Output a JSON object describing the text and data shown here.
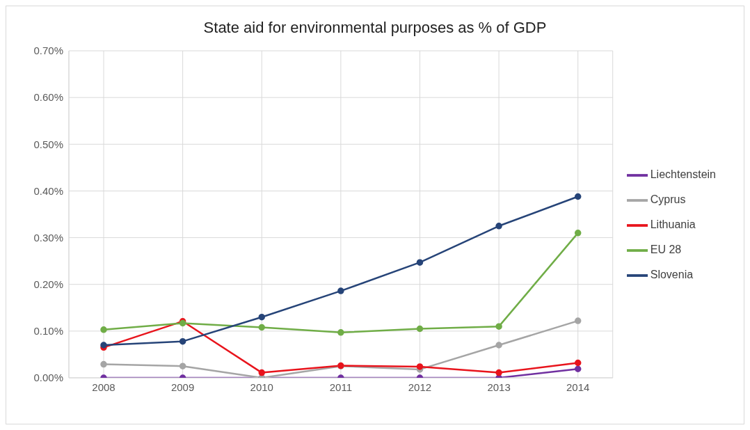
{
  "chart_data": {
    "type": "line",
    "title": "State aid for environmental purposes as % of GDP",
    "categories": [
      "2008",
      "2009",
      "2010",
      "2011",
      "2012",
      "2013",
      "2014"
    ],
    "series": [
      {
        "name": "Liechtenstein",
        "color": "#7030a0",
        "values": [
          0,
          0,
          0,
          0,
          0,
          0,
          0.019
        ]
      },
      {
        "name": "Cyprus",
        "color": "#a5a5a5",
        "values": [
          0.029,
          0.025,
          0,
          0.025,
          0.018,
          0.07,
          0.122
        ]
      },
      {
        "name": "Lithuania",
        "color": "#e8141c",
        "values": [
          0.065,
          0.121,
          0.011,
          0.026,
          0.024,
          0.011,
          0.032
        ]
      },
      {
        "name": "EU 28",
        "color": "#70ad47",
        "values": [
          0.103,
          0.117,
          0.108,
          0.097,
          0.105,
          0.11,
          0.31
        ]
      },
      {
        "name": "Slovenia",
        "color": "#264478",
        "values": [
          0.07,
          0.078,
          0.13,
          0.186,
          0.247,
          0.325,
          0.388
        ]
      }
    ],
    "ylim": [
      0,
      0.7
    ],
    "yticks": [
      {
        "value": 0,
        "label": "0.00%"
      },
      {
        "value": 0.1,
        "label": "0.10%"
      },
      {
        "value": 0.2,
        "label": "0.20%"
      },
      {
        "value": 0.3,
        "label": "0.30%"
      },
      {
        "value": 0.4,
        "label": "0.40%"
      },
      {
        "value": 0.5,
        "label": "0.50%"
      },
      {
        "value": 0.6,
        "label": "0.60%"
      },
      {
        "value": 0.7,
        "label": "0.70%"
      }
    ],
    "grid": true,
    "legend": "right",
    "marker": "circle",
    "line_style": "solid"
  }
}
